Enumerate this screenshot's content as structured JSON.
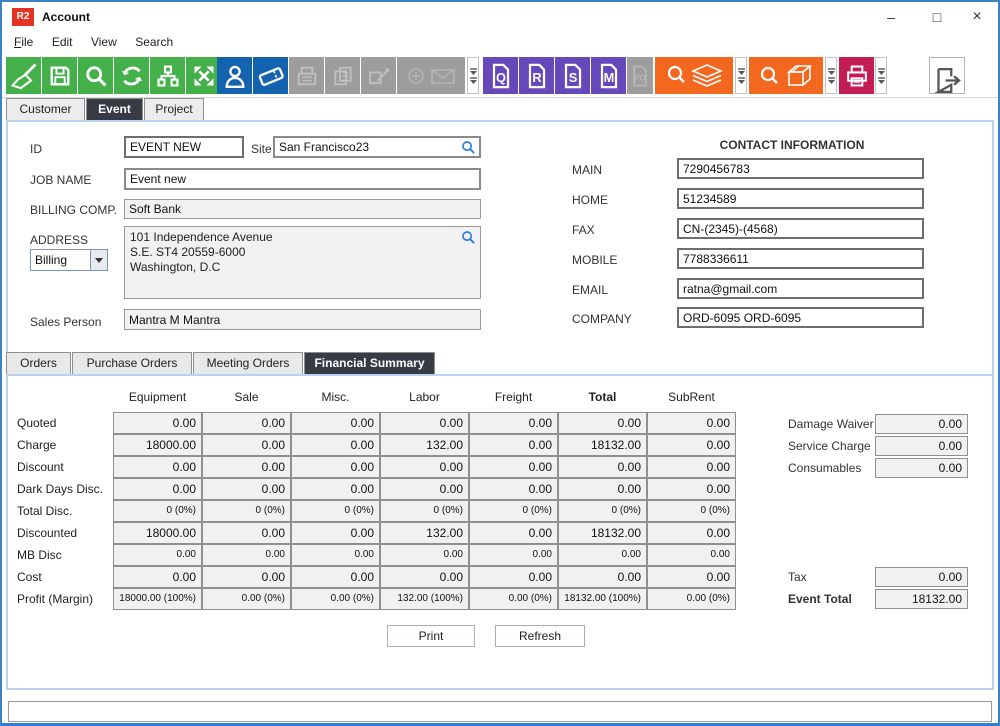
{
  "window": {
    "logo": "R2",
    "title": "Account",
    "minimize": "–",
    "maximize": "□",
    "close": "×"
  },
  "menu": {
    "items": [
      "File",
      "Edit",
      "View",
      "Search"
    ]
  },
  "toolbar": {
    "icon_names": [
      "broom-icon",
      "save-icon",
      "search-icon",
      "refresh-icon",
      "hierarchy-icon",
      "expand-icon",
      "contact-person-icon",
      "ticket-icon",
      "register-icon",
      "copy-documents-icon",
      "edit-order-icon",
      "add-mail-icon",
      "overflow-dropdown-icon",
      "quote-document-icon",
      "reservation-document-icon",
      "s-document-icon",
      "m-document-icon",
      "po-document-icon",
      "search-inventory-icon",
      "search-package-icon",
      "printer-icon",
      "exit-icon"
    ],
    "doc_letters": {
      "q": "Q",
      "r": "R",
      "s": "S",
      "m": "M",
      "po": "PO"
    }
  },
  "tabs": {
    "items": [
      {
        "label": "Customer",
        "selected": false
      },
      {
        "label": "Event",
        "selected": true
      },
      {
        "label": "Project",
        "selected": false
      }
    ]
  },
  "form": {
    "id_label": "ID",
    "id_value": "EVENT NEW",
    "site_label": "Site",
    "site_value": "San Francisco23",
    "job_label": "JOB NAME",
    "job_value": "Event new",
    "billing_label": "BILLING COMP.",
    "billing_value": "Soft Bank",
    "address_label": "ADDRESS",
    "address_type": "Billing",
    "address_lines": [
      "101 Independence Avenue",
      "S.E. ST4 20559-6000",
      "Washington, D.C"
    ],
    "sales_label": "Sales Person",
    "sales_value": "Mantra M Mantra"
  },
  "contact": {
    "title": "CONTACT INFORMATION",
    "fields": [
      {
        "label": "MAIN",
        "value": "7290456783"
      },
      {
        "label": "HOME",
        "value": "51234589"
      },
      {
        "label": "FAX",
        "value": "CN-(2345)-(4568)"
      },
      {
        "label": "MOBILE",
        "value": "7788336611"
      },
      {
        "label": "EMAIL",
        "value": "ratna@gmail.com"
      },
      {
        "label": "COMPANY",
        "value": "ORD-6095 ORD-6095"
      }
    ]
  },
  "subtabs": {
    "items": [
      {
        "label": "Orders",
        "selected": false
      },
      {
        "label": "Purchase Orders",
        "selected": false
      },
      {
        "label": "Meeting Orders",
        "selected": false
      },
      {
        "label": "Financial Summary",
        "selected": true
      }
    ]
  },
  "financial": {
    "columns": [
      {
        "label": "Equipment",
        "bold": false
      },
      {
        "label": "Sale",
        "bold": false
      },
      {
        "label": "Misc.",
        "bold": false
      },
      {
        "label": "Labor",
        "bold": false
      },
      {
        "label": "Freight",
        "bold": false
      },
      {
        "label": "Total",
        "bold": true
      },
      {
        "label": "SubRent",
        "bold": false
      }
    ],
    "rows": [
      {
        "label": "Quoted",
        "small": false,
        "values": [
          "0.00",
          "0.00",
          "0.00",
          "0.00",
          "0.00",
          "0.00",
          "0.00"
        ]
      },
      {
        "label": "Charge",
        "small": false,
        "values": [
          "18000.00",
          "0.00",
          "0.00",
          "132.00",
          "0.00",
          "18132.00",
          "0.00"
        ]
      },
      {
        "label": "Discount",
        "small": false,
        "values": [
          "0.00",
          "0.00",
          "0.00",
          "0.00",
          "0.00",
          "0.00",
          "0.00"
        ]
      },
      {
        "label": "Dark Days Disc.",
        "small": false,
        "values": [
          "0.00",
          "0.00",
          "0.00",
          "0.00",
          "0.00",
          "0.00",
          "0.00"
        ]
      },
      {
        "label": "Total Disc.",
        "small": true,
        "values": [
          "0 (0%)",
          "0 (0%)",
          "0 (0%)",
          "0 (0%)",
          "0 (0%)",
          "0 (0%)",
          "0 (0%)"
        ]
      },
      {
        "label": "Discounted",
        "small": false,
        "values": [
          "18000.00",
          "0.00",
          "0.00",
          "132.00",
          "0.00",
          "18132.00",
          "0.00"
        ]
      },
      {
        "label": "MB Disc",
        "small": true,
        "values": [
          "0.00",
          "0.00",
          "0.00",
          "0.00",
          "0.00",
          "0.00",
          "0.00"
        ]
      },
      {
        "label": "Cost",
        "small": false,
        "values": [
          "0.00",
          "0.00",
          "0.00",
          "0.00",
          "0.00",
          "0.00",
          "0.00"
        ]
      },
      {
        "label": "Profit (Margin)",
        "small": true,
        "values": [
          "18000.00 (100%)",
          "0.00 (0%)",
          "0.00 (0%)",
          "132.00 (100%)",
          "0.00 (0%)",
          "18132.00 (100%)",
          "0.00 (0%)"
        ]
      }
    ],
    "side_top": [
      {
        "label": "Damage Waiver",
        "value": "0.00"
      },
      {
        "label": "Service Charge",
        "value": "0.00"
      },
      {
        "label": "Consumables",
        "value": "0.00"
      }
    ],
    "side_bottom": [
      {
        "label": "Tax",
        "value": "0.00"
      },
      {
        "label": "Event Total",
        "value": "18132.00"
      }
    ],
    "print_label": "Print",
    "refresh_label": "Refresh"
  },
  "colors": {
    "accent_green": "#43b049",
    "accent_blue": "#1463ae",
    "accent_purple": "#6648bb",
    "accent_orange": "#f4671f",
    "accent_crimson": "#c41d56",
    "logo_red": "#e63223",
    "tab_selected_bg": "#363b45",
    "panel_border": "#b9d3ee",
    "field_readonly_bg": "#f1f1f1"
  }
}
